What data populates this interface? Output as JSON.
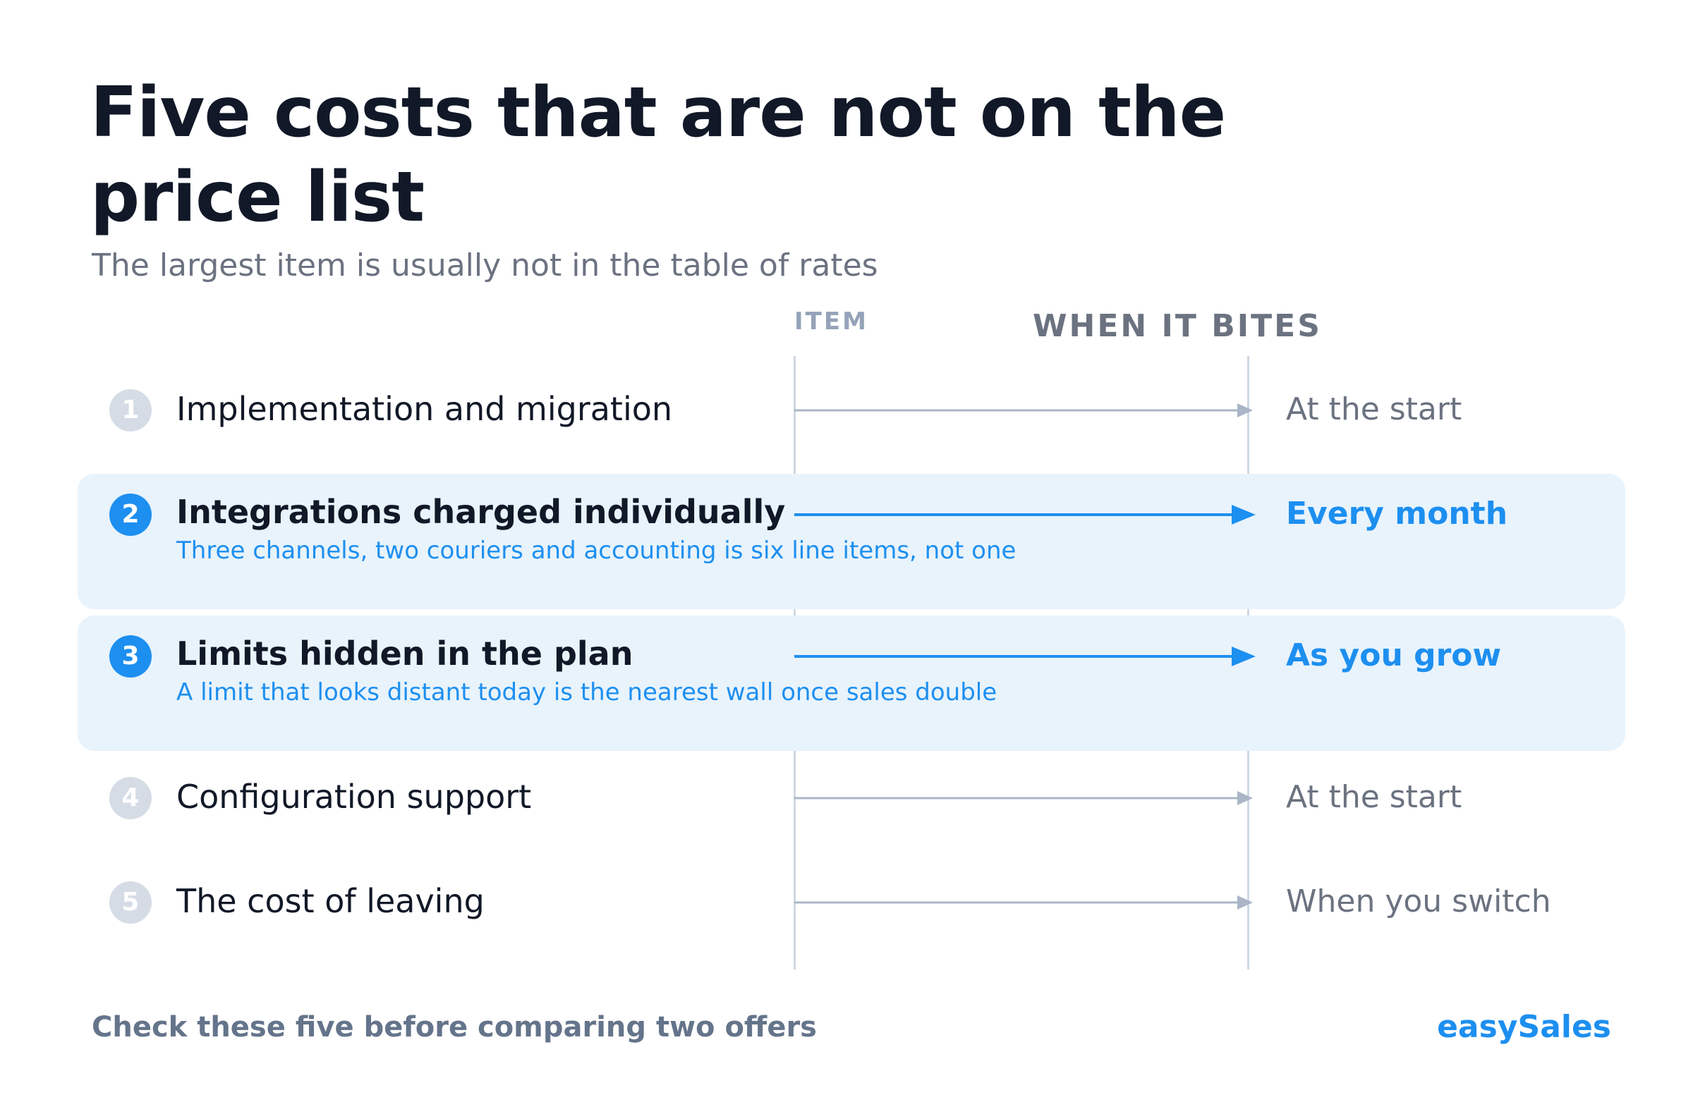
{
  "header": {
    "title": "Five costs that are not on the price list",
    "subtitle": "The largest item is usually not in the table of rates"
  },
  "columns": {
    "item": "ITEM",
    "when": "WHEN IT BITES"
  },
  "rows": [
    {
      "number": "1",
      "label": "Implementation and migration",
      "note": "",
      "when": "At the start",
      "highlighted": false
    },
    {
      "number": "2",
      "label": "Integrations charged individually",
      "note": "Three channels, two couriers and accounting is six line items, not one",
      "when": "Every month",
      "highlighted": true
    },
    {
      "number": "3",
      "label": "Limits hidden in the plan",
      "note": "A limit that looks distant today is the nearest wall once sales double",
      "when": "As you grow",
      "highlighted": true
    },
    {
      "number": "4",
      "label": "Configuration support",
      "note": "",
      "when": "At the start",
      "highlighted": false
    },
    {
      "number": "5",
      "label": "The cost of leaving",
      "note": "",
      "when": "When you switch",
      "highlighted": false
    }
  ],
  "footer": {
    "note": "Check these five before comparing two offers",
    "brand": "easySales"
  },
  "colors": {
    "accent": "#1d8ff0",
    "muted_arrow": "#aab6c6",
    "highlight_bg": "#e8f3fc",
    "title": "#111827",
    "muted_text": "#6b7280"
  }
}
